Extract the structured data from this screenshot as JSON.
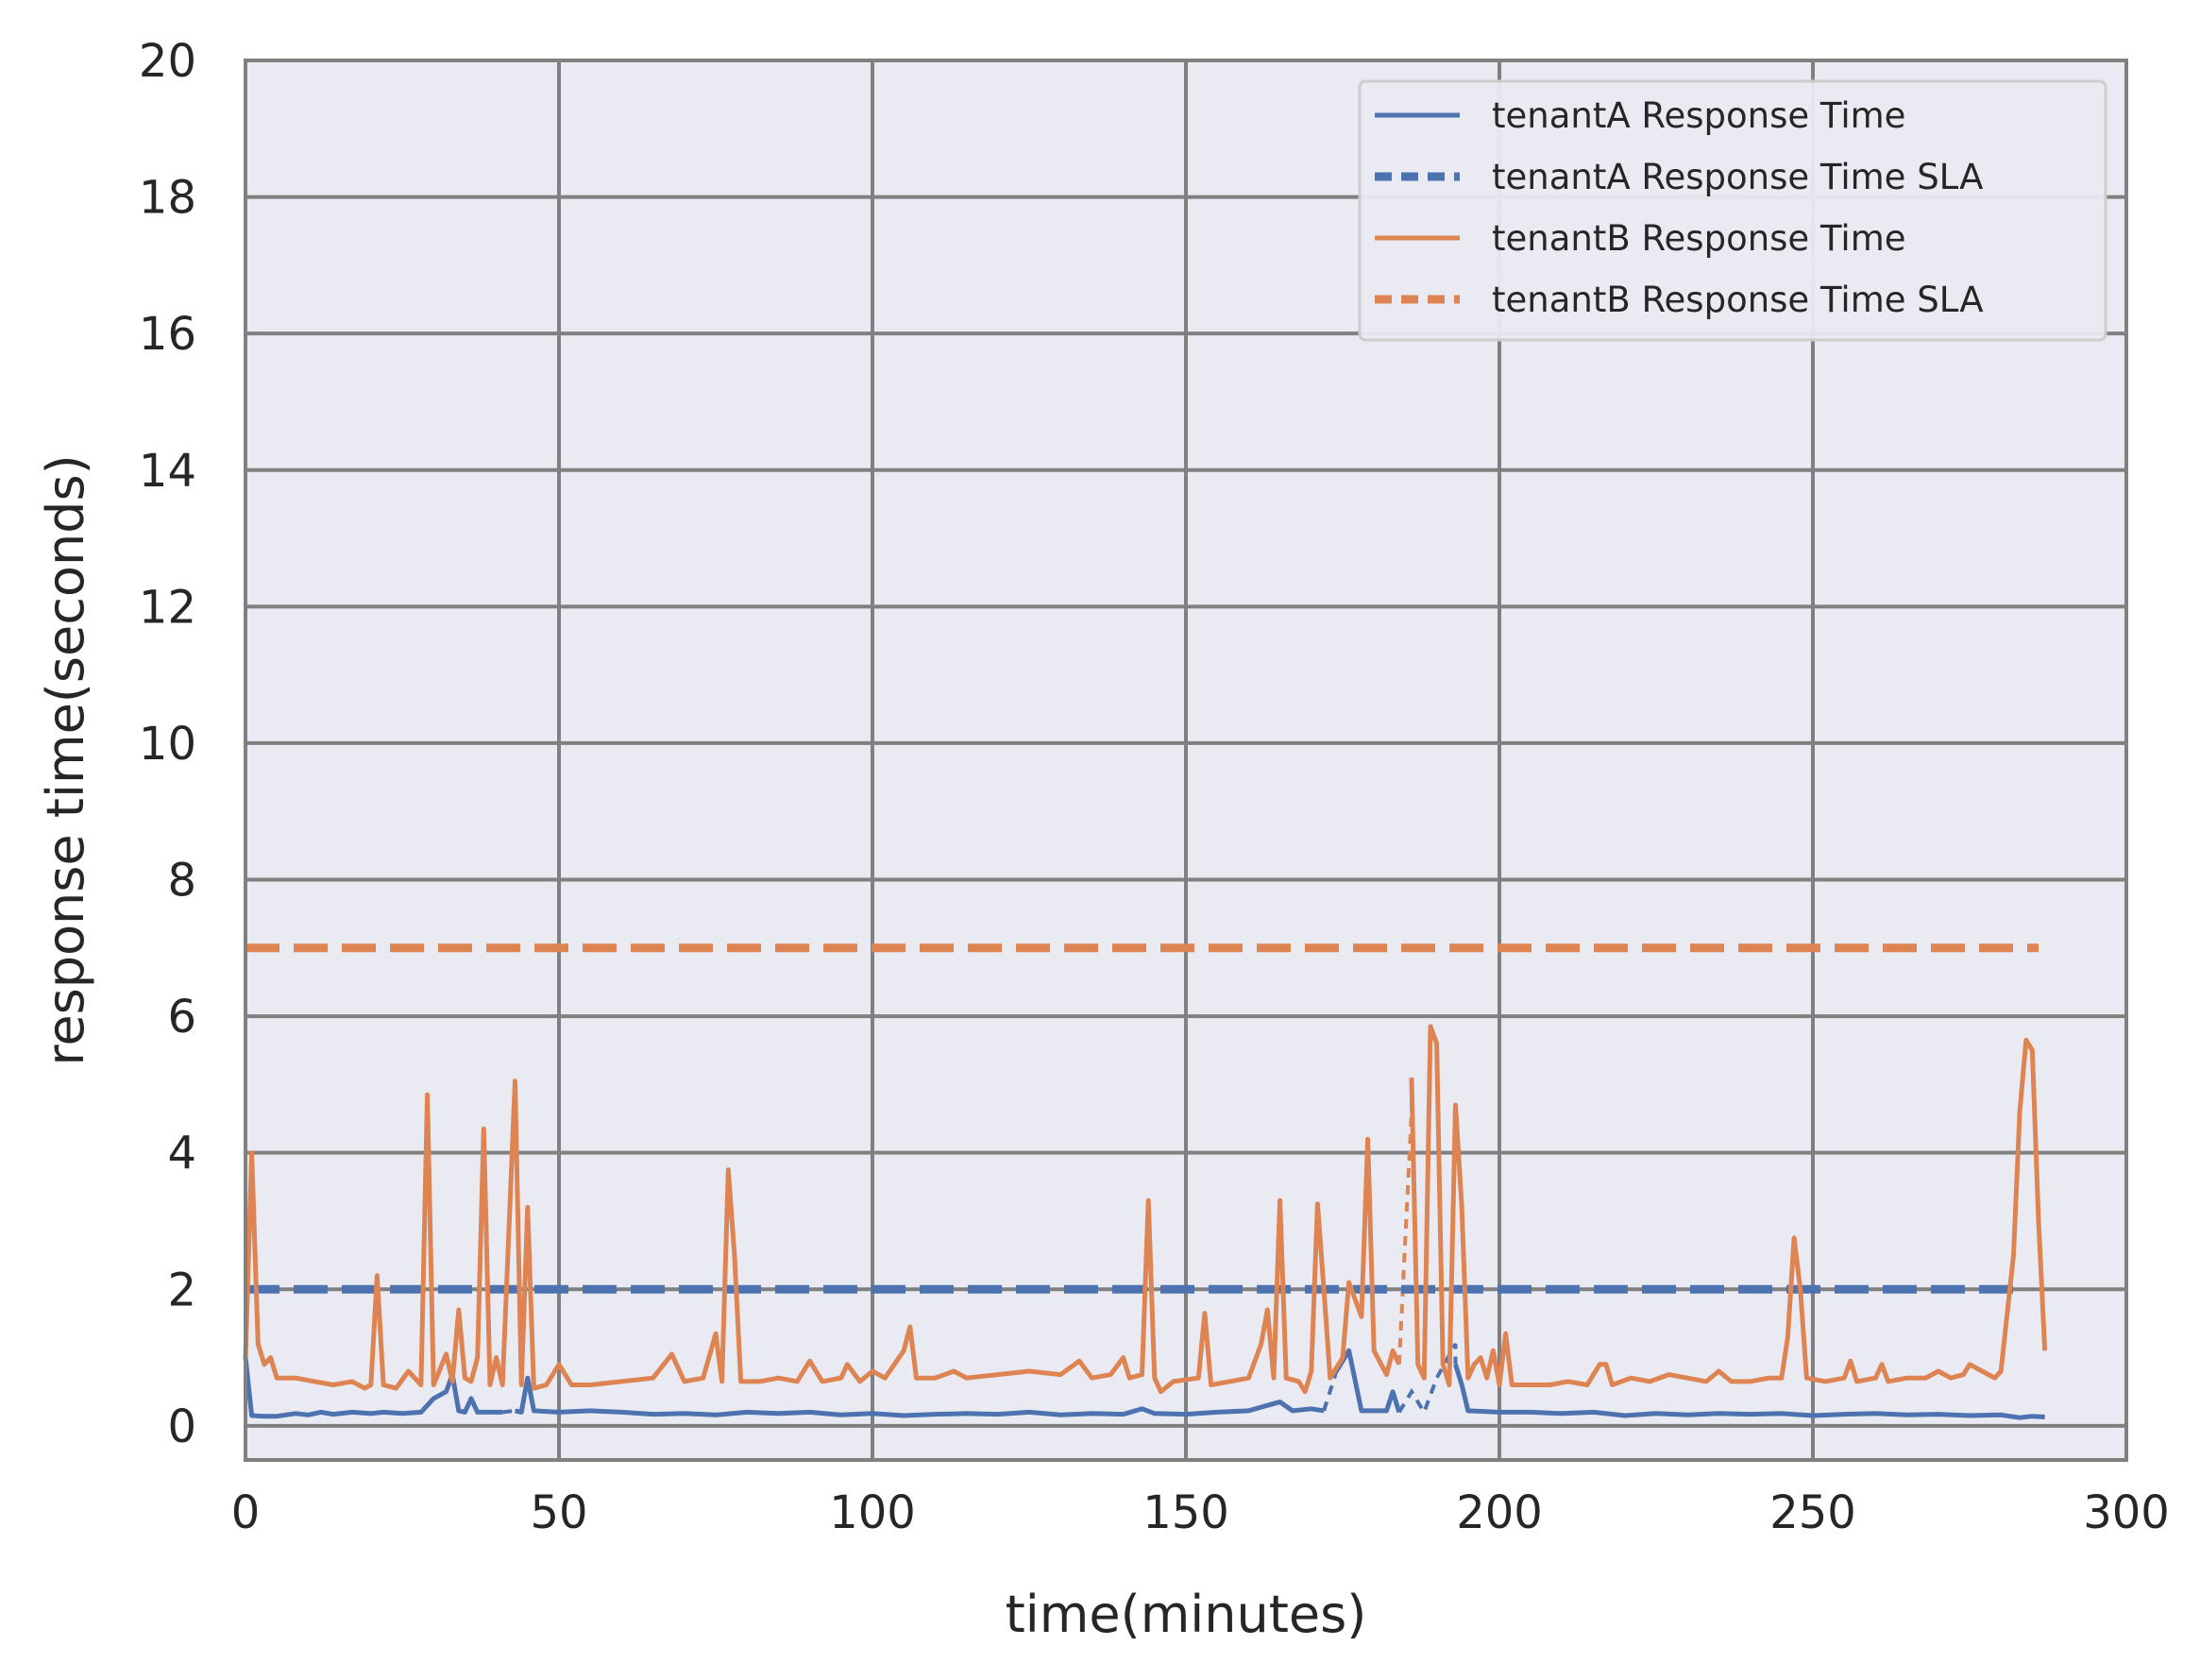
{
  "chart_data": {
    "type": "line",
    "title": "",
    "xlabel": "time(minutes)",
    "ylabel": "response time(seconds)",
    "xlim": [
      0,
      300
    ],
    "ylim": [
      -0.5,
      20
    ],
    "xticks": [
      0,
      50,
      100,
      150,
      200,
      250,
      300
    ],
    "yticks": [
      0,
      2,
      4,
      6,
      8,
      10,
      12,
      14,
      16,
      18,
      20
    ],
    "grid": true,
    "legend_position": "top-right",
    "colors": {
      "tenantA": "#4c72b0",
      "tenantB": "#dd8452",
      "background": "#eaeaf2",
      "grid": "#808080"
    },
    "series": [
      {
        "name": "tenantA Response Time",
        "style": "solid",
        "color": "#4c72b0",
        "points": [
          [
            0,
            1.0
          ],
          [
            1,
            0.15
          ],
          [
            3,
            0.14
          ],
          [
            5,
            0.14
          ],
          [
            8,
            0.18
          ],
          [
            10,
            0.16
          ],
          [
            12,
            0.2
          ],
          [
            14,
            0.17
          ],
          [
            17,
            0.2
          ],
          [
            20,
            0.18
          ],
          [
            22,
            0.2
          ],
          [
            25,
            0.18
          ],
          [
            28,
            0.2
          ],
          [
            30,
            0.4
          ],
          [
            32,
            0.5
          ],
          [
            33,
            0.75
          ],
          [
            34,
            0.22
          ],
          [
            35,
            0.2
          ],
          [
            36,
            0.4
          ],
          [
            37,
            0.2
          ],
          [
            41,
            0.2
          ],
          [
            null,
            null
          ],
          [
            43,
            0.22
          ],
          [
            44,
            0.2
          ],
          [
            45,
            0.7
          ],
          [
            46,
            0.22
          ],
          [
            50,
            0.2
          ],
          [
            55,
            0.22
          ],
          [
            60,
            0.2
          ],
          [
            65,
            0.17
          ],
          [
            70,
            0.18
          ],
          [
            75,
            0.16
          ],
          [
            80,
            0.2
          ],
          [
            85,
            0.18
          ],
          [
            90,
            0.2
          ],
          [
            95,
            0.16
          ],
          [
            100,
            0.18
          ],
          [
            105,
            0.15
          ],
          [
            110,
            0.17
          ],
          [
            115,
            0.18
          ],
          [
            120,
            0.17
          ],
          [
            125,
            0.2
          ],
          [
            130,
            0.16
          ],
          [
            135,
            0.18
          ],
          [
            140,
            0.17
          ],
          [
            143,
            0.25
          ],
          [
            145,
            0.18
          ],
          [
            150,
            0.17
          ],
          [
            155,
            0.2
          ],
          [
            160,
            0.22
          ],
          [
            163,
            0.3
          ],
          [
            165,
            0.35
          ],
          [
            167,
            0.22
          ],
          [
            170,
            0.25
          ],
          [
            172,
            0.22
          ],
          [
            null,
            null
          ],
          [
            174,
            0.8
          ],
          [
            176,
            1.1
          ],
          [
            178,
            0.22
          ],
          [
            182,
            0.22
          ],
          [
            183,
            0.5
          ],
          [
            184,
            0.2
          ],
          [
            null,
            null
          ],
          [
            193,
            0.9
          ],
          [
            194,
            0.6
          ],
          [
            195,
            0.22
          ],
          [
            200,
            0.2
          ],
          [
            205,
            0.2
          ],
          [
            210,
            0.18
          ],
          [
            215,
            0.2
          ],
          [
            220,
            0.15
          ],
          [
            225,
            0.18
          ],
          [
            230,
            0.16
          ],
          [
            235,
            0.18
          ],
          [
            240,
            0.17
          ],
          [
            245,
            0.18
          ],
          [
            250,
            0.15
          ],
          [
            255,
            0.17
          ],
          [
            260,
            0.18
          ],
          [
            265,
            0.16
          ],
          [
            270,
            0.17
          ],
          [
            275,
            0.15
          ],
          [
            280,
            0.16
          ],
          [
            283,
            0.12
          ],
          [
            285,
            0.14
          ],
          [
            287,
            0.13
          ]
        ]
      },
      {
        "name": "tenantA Response Time SLA",
        "style": "dashed",
        "color": "#4c72b0",
        "points": [
          [
            0,
            2.0
          ],
          [
            283,
            2.0
          ]
        ]
      },
      {
        "name": "tenantB Response Time",
        "style": "solid",
        "color": "#dd8452",
        "points": [
          [
            0,
            1.0
          ],
          [
            1,
            4.0
          ],
          [
            2,
            1.2
          ],
          [
            3,
            0.9
          ],
          [
            4,
            1.0
          ],
          [
            5,
            0.7
          ],
          [
            8,
            0.7
          ],
          [
            11,
            0.65
          ],
          [
            14,
            0.6
          ],
          [
            17,
            0.65
          ],
          [
            19,
            0.55
          ],
          [
            20,
            0.6
          ],
          [
            21,
            2.2
          ],
          [
            22,
            0.6
          ],
          [
            24,
            0.55
          ],
          [
            26,
            0.8
          ],
          [
            28,
            0.6
          ],
          [
            29,
            4.85
          ],
          [
            30,
            0.6
          ],
          [
            32,
            1.05
          ],
          [
            33,
            0.65
          ],
          [
            34,
            1.7
          ],
          [
            35,
            0.7
          ],
          [
            36,
            0.65
          ],
          [
            37,
            1.0
          ],
          [
            38,
            4.35
          ],
          [
            39,
            0.6
          ],
          [
            40,
            1.0
          ],
          [
            41,
            0.6
          ],
          [
            43,
            5.05
          ],
          [
            44,
            0.6
          ],
          [
            45,
            3.2
          ],
          [
            46,
            0.55
          ],
          [
            48,
            0.6
          ],
          [
            50,
            0.9
          ],
          [
            52,
            0.6
          ],
          [
            55,
            0.6
          ],
          [
            60,
            0.65
          ],
          [
            65,
            0.7
          ],
          [
            68,
            1.05
          ],
          [
            70,
            0.65
          ],
          [
            73,
            0.7
          ],
          [
            75,
            1.35
          ],
          [
            76,
            0.65
          ],
          [
            77,
            3.75
          ],
          [
            78,
            2.5
          ],
          [
            79,
            0.65
          ],
          [
            82,
            0.65
          ],
          [
            85,
            0.7
          ],
          [
            88,
            0.65
          ],
          [
            90,
            0.95
          ],
          [
            92,
            0.65
          ],
          [
            95,
            0.7
          ],
          [
            96,
            0.9
          ],
          [
            98,
            0.65
          ],
          [
            100,
            0.8
          ],
          [
            102,
            0.7
          ],
          [
            105,
            1.1
          ],
          [
            106,
            1.45
          ],
          [
            107,
            0.7
          ],
          [
            110,
            0.7
          ],
          [
            113,
            0.8
          ],
          [
            115,
            0.7
          ],
          [
            120,
            0.75
          ],
          [
            125,
            0.8
          ],
          [
            130,
            0.75
          ],
          [
            133,
            0.95
          ],
          [
            135,
            0.7
          ],
          [
            138,
            0.75
          ],
          [
            140,
            1.0
          ],
          [
            141,
            0.7
          ],
          [
            143,
            0.75
          ],
          [
            144,
            3.3
          ],
          [
            145,
            0.7
          ],
          [
            146,
            0.5
          ],
          [
            148,
            0.65
          ],
          [
            152,
            0.7
          ],
          [
            153,
            1.65
          ],
          [
            154,
            0.6
          ],
          [
            157,
            0.65
          ],
          [
            160,
            0.7
          ],
          [
            162,
            1.2
          ],
          [
            163,
            1.7
          ],
          [
            164,
            0.7
          ],
          [
            165,
            3.3
          ],
          [
            166,
            0.7
          ],
          [
            168,
            0.65
          ],
          [
            169,
            0.5
          ],
          [
            170,
            0.8
          ],
          [
            171,
            3.25
          ],
          [
            172,
            2.0
          ],
          [
            173,
            0.7
          ],
          [
            175,
            1.0
          ],
          [
            176,
            2.1
          ],
          [
            178,
            1.6
          ],
          [
            179,
            4.2
          ],
          [
            180,
            1.1
          ],
          [
            182,
            0.75
          ],
          [
            183,
            1.1
          ],
          [
            184,
            0.9
          ],
          [
            null,
            null
          ],
          [
            186,
            5.1
          ],
          [
            187,
            0.9
          ],
          [
            188,
            0.7
          ],
          [
            189,
            5.85
          ],
          [
            190,
            5.6
          ],
          [
            191,
            0.9
          ],
          [
            192,
            0.6
          ],
          [
            193,
            4.7
          ],
          [
            194,
            3.2
          ],
          [
            195,
            0.7
          ],
          [
            196,
            0.9
          ],
          [
            197,
            1.0
          ],
          [
            198,
            0.7
          ],
          [
            199,
            1.1
          ],
          [
            200,
            0.6
          ],
          [
            201,
            1.35
          ],
          [
            202,
            0.6
          ],
          [
            205,
            0.6
          ],
          [
            208,
            0.6
          ],
          [
            211,
            0.65
          ],
          [
            214,
            0.6
          ],
          [
            216,
            0.9
          ],
          [
            217,
            0.9
          ],
          [
            218,
            0.6
          ],
          [
            221,
            0.7
          ],
          [
            224,
            0.65
          ],
          [
            227,
            0.75
          ],
          [
            230,
            0.7
          ],
          [
            233,
            0.65
          ],
          [
            235,
            0.8
          ],
          [
            237,
            0.65
          ],
          [
            240,
            0.65
          ],
          [
            243,
            0.7
          ],
          [
            245,
            0.7
          ],
          [
            246,
            1.3
          ],
          [
            247,
            2.75
          ],
          [
            248,
            2.0
          ],
          [
            249,
            0.7
          ],
          [
            252,
            0.65
          ],
          [
            255,
            0.7
          ],
          [
            256,
            0.95
          ],
          [
            257,
            0.65
          ],
          [
            260,
            0.7
          ],
          [
            261,
            0.9
          ],
          [
            262,
            0.65
          ],
          [
            265,
            0.7
          ],
          [
            268,
            0.7
          ],
          [
            270,
            0.8
          ],
          [
            272,
            0.7
          ],
          [
            274,
            0.75
          ],
          [
            275,
            0.9
          ],
          [
            277,
            0.8
          ],
          [
            279,
            0.7
          ],
          [
            280,
            0.8
          ],
          [
            282,
            2.5
          ],
          [
            283,
            4.6
          ],
          [
            284,
            5.65
          ],
          [
            285,
            5.5
          ],
          [
            286,
            3.0
          ],
          [
            287,
            1.1
          ]
        ]
      },
      {
        "name": "tenantB Response Time SLA",
        "style": "dashed",
        "color": "#dd8452",
        "points": [
          [
            0,
            7.0
          ],
          [
            286,
            7.0
          ]
        ]
      }
    ],
    "connectors": [
      {
        "color": "#4c72b0",
        "points": [
          [
            41,
            0.2
          ],
          [
            43,
            0.22
          ]
        ]
      },
      {
        "color": "#4c72b0",
        "points": [
          [
            172,
            0.22
          ],
          [
            174,
            0.8
          ]
        ]
      },
      {
        "color": "#4c72b0",
        "points": [
          [
            184,
            0.2
          ],
          [
            186,
            0.5
          ],
          [
            188,
            0.2
          ],
          [
            190,
            0.7
          ],
          [
            193,
            1.2
          ],
          [
            193,
            0.9
          ]
        ]
      },
      {
        "color": "#dd8452",
        "points": [
          [
            184,
            0.9
          ],
          [
            186,
            4.6
          ],
          [
            186,
            5.1
          ]
        ]
      }
    ]
  }
}
